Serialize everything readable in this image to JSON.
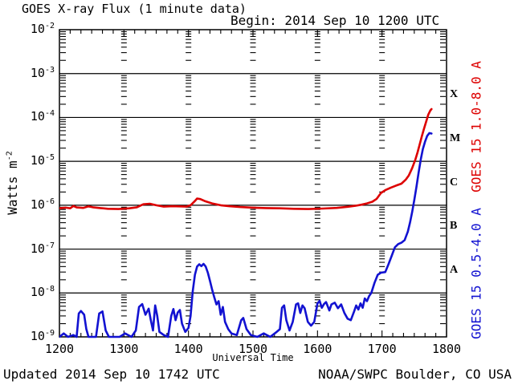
{
  "header": {
    "title": "GOES X-ray Flux (1 minute data)",
    "begin_label": "Begin: 2014 Sep 10 1200 UTC"
  },
  "footer": {
    "updated": "Updated 2014 Sep 10 1742 UTC",
    "credit": "NOAA/SWPC Boulder, CO USA"
  },
  "axes": {
    "x_title": "Universal Time",
    "y_title_base": "Watts m",
    "y_title_exponent": "-2"
  },
  "colors": {
    "long_channel": "#dd0000",
    "short_channel": "#1212d1",
    "grid": "#000000",
    "background": "#ffffff"
  },
  "chart_data": {
    "type": "line",
    "title": "GOES X-ray Flux (1 minute data)",
    "xlabel": "Universal Time",
    "ylabel": "Watts m^-2",
    "y_scale": "log",
    "ylim_exponents": [
      -9,
      -2
    ],
    "x_axis": {
      "start_minutes": 0,
      "end_minutes": 360,
      "tick_labels": [
        "1200",
        "1300",
        "1400",
        "1500",
        "1600",
        "1700",
        "1800"
      ],
      "minor_tick_minutes": 10
    },
    "y_axis": {
      "exponents": [
        -2,
        -3,
        -4,
        -5,
        -6,
        -7,
        -8,
        -9
      ]
    },
    "flare_classes": [
      {
        "label": "X",
        "band_upper_exp": -3,
        "band_lower_exp": -4
      },
      {
        "label": "M",
        "band_upper_exp": -4,
        "band_lower_exp": -5
      },
      {
        "label": "C",
        "band_upper_exp": -5,
        "band_lower_exp": -6
      },
      {
        "label": "B",
        "band_upper_exp": -6,
        "band_lower_exp": -7
      },
      {
        "label": "A",
        "band_upper_exp": -7,
        "band_lower_exp": -8
      }
    ],
    "legend": [
      {
        "name": "GOES 15 1.0-8.0 A",
        "color": "#dd0000"
      },
      {
        "name": "GOES 15 0.5-4.0 A",
        "color": "#1212d1"
      }
    ],
    "series": [
      {
        "name": "GOES 15 1.0-8.0 A",
        "color": "#dd0000",
        "points": [
          [
            0,
            8.5e-07
          ],
          [
            6,
            8.8e-07
          ],
          [
            10,
            8.5e-07
          ],
          [
            13,
            9.6e-07
          ],
          [
            16,
            8.9e-07
          ],
          [
            22,
            8.7e-07
          ],
          [
            27,
            9.4e-07
          ],
          [
            31,
            9e-07
          ],
          [
            38,
            8.6e-07
          ],
          [
            45,
            8.3e-07
          ],
          [
            55,
            8.2e-07
          ],
          [
            65,
            8.5e-07
          ],
          [
            72,
            9e-07
          ],
          [
            78,
            1.05e-06
          ],
          [
            84,
            1.08e-06
          ],
          [
            90,
            1e-06
          ],
          [
            97,
            9.3e-07
          ],
          [
            105,
            9.5e-07
          ],
          [
            112,
            9.4e-07
          ],
          [
            118,
            9.3e-07
          ],
          [
            122,
            1e-06
          ],
          [
            126,
            1.25e-06
          ],
          [
            128,
            1.42e-06
          ],
          [
            131,
            1.38e-06
          ],
          [
            135,
            1.25e-06
          ],
          [
            142,
            1.1e-06
          ],
          [
            150,
            1e-06
          ],
          [
            158,
            9.5e-07
          ],
          [
            168,
            9.1e-07
          ],
          [
            180,
            8.8e-07
          ],
          [
            192,
            8.6e-07
          ],
          [
            205,
            8.5e-07
          ],
          [
            218,
            8.3e-07
          ],
          [
            232,
            8.2e-07
          ],
          [
            245,
            8.4e-07
          ],
          [
            258,
            8.7e-07
          ],
          [
            268,
            9.2e-07
          ],
          [
            275,
            9.7e-07
          ],
          [
            281,
            1.03e-06
          ],
          [
            286,
            1.1e-06
          ],
          [
            291,
            1.2e-06
          ],
          [
            295,
            1.4e-06
          ],
          [
            299,
            1.9e-06
          ],
          [
            303,
            2.2e-06
          ],
          [
            308,
            2.5e-06
          ],
          [
            313,
            2.8e-06
          ],
          [
            318,
            3.1e-06
          ],
          [
            322,
            3.8e-06
          ],
          [
            325,
            4.8e-06
          ],
          [
            328,
            7e-06
          ],
          [
            331,
            1.1e-05
          ],
          [
            333,
            1.6e-05
          ],
          [
            335,
            2.4e-05
          ],
          [
            337,
            3.7e-05
          ],
          [
            339,
            5.5e-05
          ],
          [
            341,
            8e-05
          ],
          [
            343,
            0.000115
          ],
          [
            345,
            0.000145
          ],
          [
            346,
            0.000155
          ]
        ]
      },
      {
        "name": "GOES 15 0.5-4.0 A",
        "color": "#1212d1",
        "points": [
          [
            0,
            1e-09
          ],
          [
            4,
            1.2e-09
          ],
          [
            8,
            1e-09
          ],
          [
            13,
            1.1e-09
          ],
          [
            16,
            1e-09
          ],
          [
            18,
            3.4e-09
          ],
          [
            20,
            3.9e-09
          ],
          [
            23,
            3.2e-09
          ],
          [
            25,
            1.5e-09
          ],
          [
            27,
            1e-09
          ],
          [
            34,
            1e-09
          ],
          [
            37,
            3.4e-09
          ],
          [
            40,
            3.8e-09
          ],
          [
            43,
            1.4e-09
          ],
          [
            46,
            1e-09
          ],
          [
            56,
            1e-09
          ],
          [
            61,
            1.2e-09
          ],
          [
            67,
            1e-09
          ],
          [
            71,
            1.4e-09
          ],
          [
            74,
            4.8e-09
          ],
          [
            77,
            5.6e-09
          ],
          [
            80,
            3.2e-09
          ],
          [
            83,
            4.4e-09
          ],
          [
            85,
            2.4e-09
          ],
          [
            87,
            1.4e-09
          ],
          [
            89,
            5.2e-09
          ],
          [
            91,
            3e-09
          ],
          [
            93,
            1.3e-09
          ],
          [
            97,
            1.1e-09
          ],
          [
            101,
            1e-09
          ],
          [
            104,
            3e-09
          ],
          [
            106,
            4.3e-09
          ],
          [
            108,
            2.4e-09
          ],
          [
            110,
            3.6e-09
          ],
          [
            112,
            4.1e-09
          ],
          [
            114,
            2e-09
          ],
          [
            117,
            1.3e-09
          ],
          [
            120,
            1.6e-09
          ],
          [
            122,
            3e-09
          ],
          [
            124,
            1.1e-08
          ],
          [
            126,
            2.6e-08
          ],
          [
            128,
            4e-08
          ],
          [
            130,
            4.5e-08
          ],
          [
            132,
            4.1e-08
          ],
          [
            134,
            4.6e-08
          ],
          [
            136,
            4e-08
          ],
          [
            138,
            2.9e-08
          ],
          [
            140,
            1.9e-08
          ],
          [
            142,
            1.2e-08
          ],
          [
            144,
            8e-09
          ],
          [
            146,
            5.5e-09
          ],
          [
            148,
            6.5e-09
          ],
          [
            150,
            3.2e-09
          ],
          [
            152,
            4.8e-09
          ],
          [
            154,
            2.2e-09
          ],
          [
            157,
            1.5e-09
          ],
          [
            160,
            1.2e-09
          ],
          [
            165,
            1.1e-09
          ],
          [
            169,
            2.4e-09
          ],
          [
            171,
            2.7e-09
          ],
          [
            174,
            1.5e-09
          ],
          [
            178,
            1.1e-09
          ],
          [
            184,
            1e-09
          ],
          [
            190,
            1.2e-09
          ],
          [
            196,
            1e-09
          ],
          [
            202,
            1.3e-09
          ],
          [
            205,
            1.5e-09
          ],
          [
            207,
            4.6e-09
          ],
          [
            209,
            5.2e-09
          ],
          [
            211,
            2.4e-09
          ],
          [
            214,
            1.4e-09
          ],
          [
            217,
            2.2e-09
          ],
          [
            220,
            5.5e-09
          ],
          [
            222,
            5.8e-09
          ],
          [
            224,
            3.5e-09
          ],
          [
            226,
            5.2e-09
          ],
          [
            228,
            4.5e-09
          ],
          [
            231,
            2.2e-09
          ],
          [
            234,
            1.8e-09
          ],
          [
            237,
            2.2e-09
          ],
          [
            240,
            5.8e-09
          ],
          [
            242,
            6.6e-09
          ],
          [
            244,
            4.6e-09
          ],
          [
            246,
            5.6e-09
          ],
          [
            248,
            6.2e-09
          ],
          [
            251,
            4e-09
          ],
          [
            253,
            5.5e-09
          ],
          [
            256,
            6e-09
          ],
          [
            259,
            4.5e-09
          ],
          [
            262,
            5.5e-09
          ],
          [
            265,
            3.5e-09
          ],
          [
            268,
            2.6e-09
          ],
          [
            271,
            2.4e-09
          ],
          [
            274,
            3.8e-09
          ],
          [
            276,
            5.2e-09
          ],
          [
            278,
            4.2e-09
          ],
          [
            280,
            5.8e-09
          ],
          [
            282,
            4.6e-09
          ],
          [
            284,
            7.5e-09
          ],
          [
            286,
            6.5e-09
          ],
          [
            288,
            8.5e-09
          ],
          [
            290,
            1e-08
          ],
          [
            293,
            1.7e-08
          ],
          [
            296,
            2.6e-08
          ],
          [
            299,
            2.9e-08
          ],
          [
            303,
            3e-08
          ],
          [
            306,
            4.5e-08
          ],
          [
            309,
            7e-08
          ],
          [
            312,
            1.1e-07
          ],
          [
            315,
            1.3e-07
          ],
          [
            318,
            1.4e-07
          ],
          [
            321,
            1.6e-07
          ],
          [
            324,
            2.5e-07
          ],
          [
            326,
            4e-07
          ],
          [
            328,
            7e-07
          ],
          [
            330,
            1.3e-06
          ],
          [
            332,
            2.6e-06
          ],
          [
            334,
            5.5e-06
          ],
          [
            336,
            1.1e-05
          ],
          [
            338,
            1.9e-05
          ],
          [
            340,
            2.8e-05
          ],
          [
            342,
            3.8e-05
          ],
          [
            344,
            4.4e-05
          ],
          [
            346,
            4.3e-05
          ]
        ]
      }
    ]
  }
}
